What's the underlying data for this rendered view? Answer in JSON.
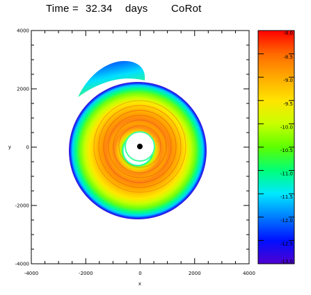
{
  "title": {
    "label": "Time =",
    "value": "32.34",
    "unit": "days",
    "model": "CoRot"
  },
  "chart_data": {
    "type": "heatmap",
    "description_kind": "2D density map of a spiral disk in the x-y plane",
    "xlabel": "x",
    "ylabel": "y",
    "xlim": [
      -4000,
      4000
    ],
    "ylim": [
      -4000,
      4000
    ],
    "x_ticks": [
      "-4000",
      "-2000",
      "0",
      "2000",
      "4000"
    ],
    "y_ticks": [
      "-4000",
      "-2000",
      "0",
      "2000",
      "4000"
    ],
    "colorbar": {
      "range": [
        -13.0,
        -8.0
      ],
      "tick_labels": [
        "-8.0",
        "-8.5",
        "-9.0",
        "-9.5",
        "-10.0",
        "-10.5",
        "-11.0",
        "-11.5",
        "-12.0",
        "-12.5",
        "-13.0"
      ],
      "colors": [
        "#ff0000",
        "#ff6a00",
        "#ffaa00",
        "#ffe400",
        "#c8ff00",
        "#5cff00",
        "#00ff78",
        "#00e8ff",
        "#007cff",
        "#0010ff",
        "#5000d0"
      ]
    },
    "features": {
      "central_body": {
        "x": 0,
        "y": 0,
        "color": "#000000"
      },
      "inner_hole_radius": 500,
      "disk_outer_radius_approx": 2300,
      "spiral_arm": "upper-left tail extending to about y=2900"
    }
  }
}
